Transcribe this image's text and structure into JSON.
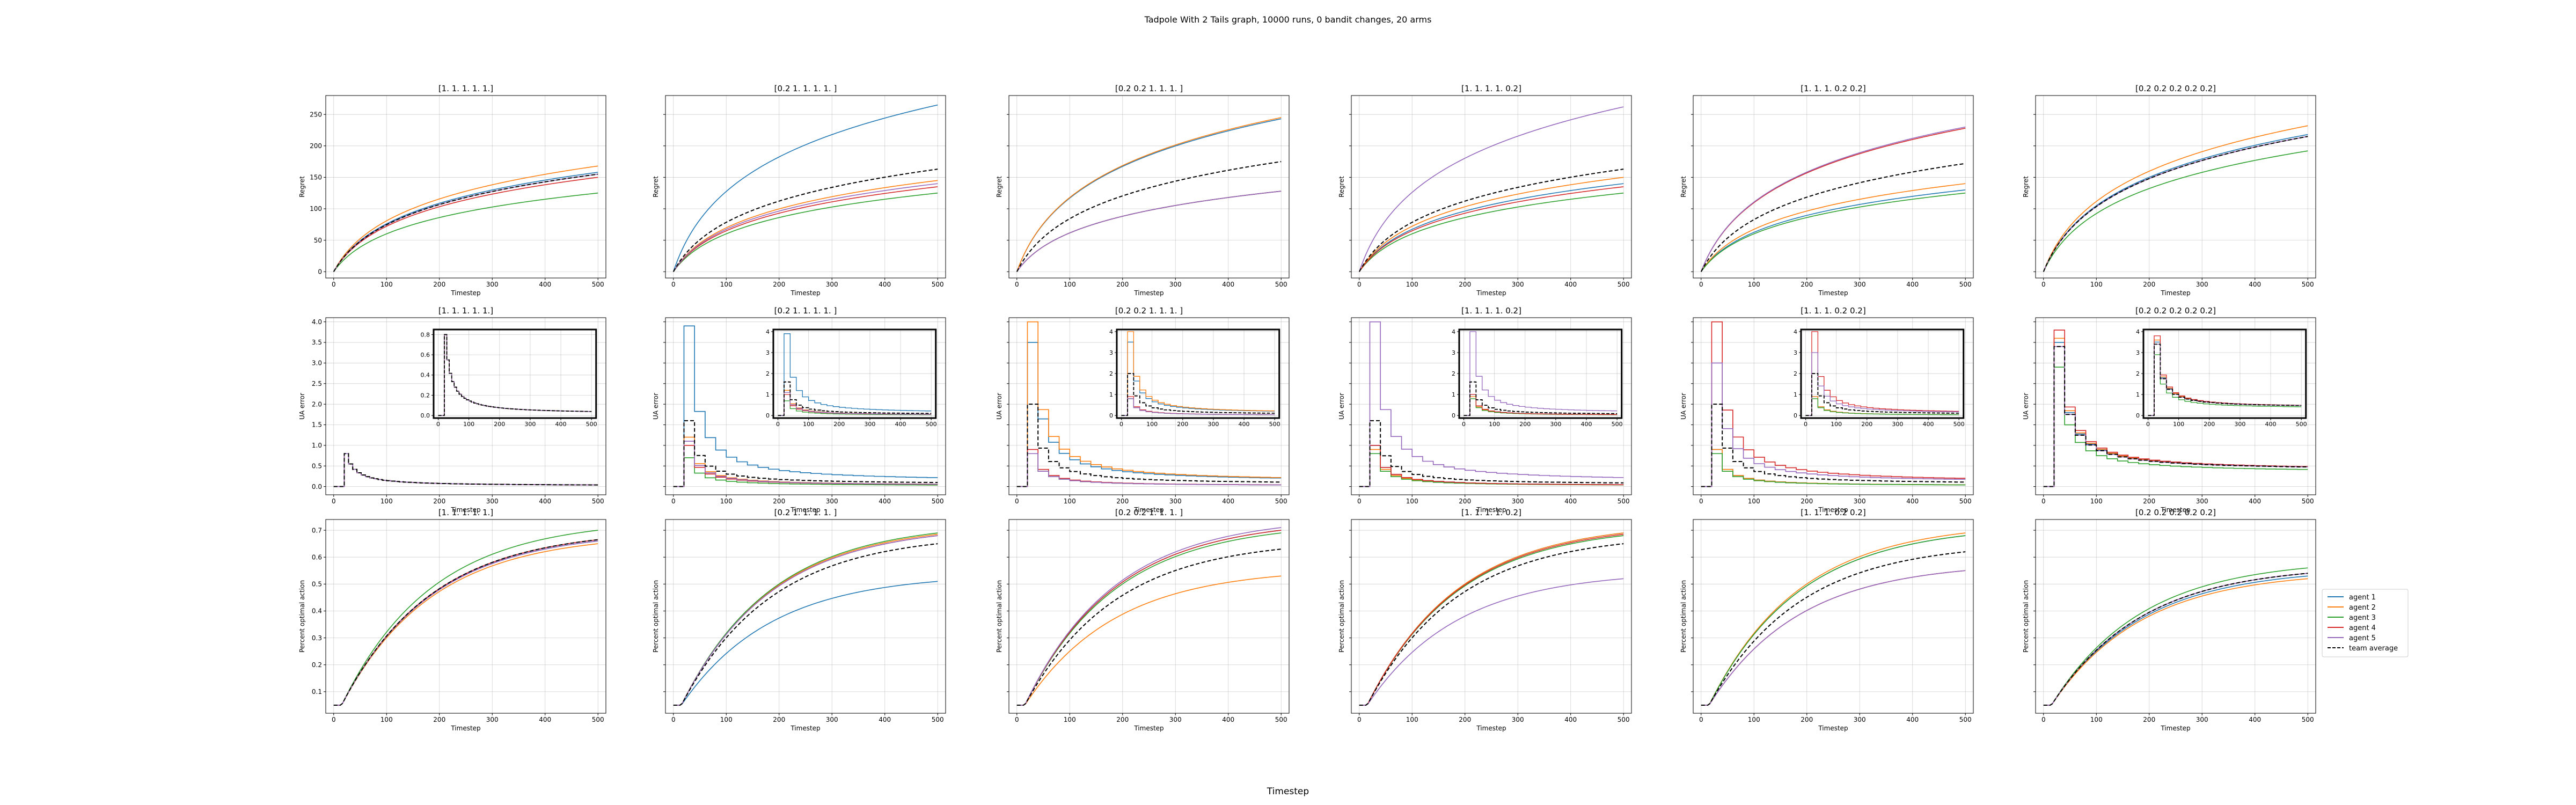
{
  "figure": {
    "suptitle": "Tadpole With 2 Tails graph, 10000 runs, 0 bandit changes, 20 arms",
    "supxlabel": "Timestep"
  },
  "legend": {
    "placement": "right of bottom-right subplot",
    "entries": [
      {
        "label": "agent 1",
        "color": "#1f77b4",
        "dashed": false
      },
      {
        "label": "agent 2",
        "color": "#ff7f0e",
        "dashed": false
      },
      {
        "label": "agent 3",
        "color": "#2ca02c",
        "dashed": false
      },
      {
        "label": "agent 4",
        "color": "#d62728",
        "dashed": false
      },
      {
        "label": "agent 5",
        "color": "#9467bd",
        "dashed": false
      },
      {
        "label": "team average",
        "color": "#000000",
        "dashed": true
      }
    ]
  },
  "chart_data": {
    "type": "line",
    "grid": true,
    "x_range": [
      0,
      500
    ],
    "series_names": [
      "agent 1",
      "agent 2",
      "agent 3",
      "agent 4",
      "agent 5",
      "team average"
    ],
    "column_titles": [
      "[1. 1. 1. 1. 1.]",
      "[0.2 1.  1.  1.  1. ]",
      "[0.2 0.2 1.  1.  1. ]",
      "[1.  1.  1.  1.  0.2]",
      "[1.  1.  1.  0.2 0.2]",
      "[0.2 0.2 0.2 0.2 0.2]"
    ],
    "rows": [
      {
        "ylabel": "Regret",
        "xlabel": "Timestep",
        "ylim": [
          -10,
          280
        ],
        "yticks": [
          0,
          50,
          100,
          150,
          200,
          250
        ],
        "xticks": [
          0,
          100,
          200,
          300,
          400,
          500
        ],
        "panels": [
          {
            "final": [
              158,
              168,
              125,
              150,
              155,
              155
            ]
          },
          {
            "final": [
              265,
              145,
              125,
              135,
              140,
              163
            ]
          },
          {
            "final": [
              243,
              245,
              128,
              128,
              128,
              175
            ]
          },
          {
            "final": [
              140,
              150,
              125,
              135,
              262,
              163
            ]
          },
          {
            "final": [
              130,
              140,
              125,
              228,
              230,
              172
            ]
          },
          {
            "final": [
              218,
              232,
              192,
              215,
              215,
              215
            ]
          }
        ]
      },
      {
        "ylabel": "UA error",
        "xlabel": "Timestep",
        "ylim": [
          -0.2,
          4.1
        ],
        "yticks": [
          0.0,
          0.5,
          1.0,
          1.5,
          2.0,
          2.5,
          3.0,
          3.5,
          4.0
        ],
        "xticks": [
          0,
          100,
          200,
          300,
          400,
          500
        ],
        "inset": {
          "yticks_small": [
            0.0,
            0.2,
            0.4,
            0.6,
            0.8
          ],
          "yticks_large": [
            0,
            1,
            2,
            3,
            4
          ]
        },
        "panels": [
          {
            "peak": [
              0.8,
              0.8,
              0.8,
              0.8,
              0.8,
              0.8
            ],
            "tail": [
              0.02,
              0.02,
              0.02,
              0.02,
              0.02,
              0.02
            ]
          },
          {
            "peak": [
              3.9,
              1.2,
              0.7,
              1.0,
              1.1,
              1.6
            ],
            "tail": [
              0.12,
              0.03,
              0.02,
              0.03,
              0.03,
              0.06
            ]
          },
          {
            "peak": [
              3.5,
              4.0,
              0.8,
              0.9,
              0.8,
              2.0
            ],
            "tail": [
              0.12,
              0.12,
              0.02,
              0.02,
              0.02,
              0.06
            ]
          },
          {
            "peak": [
              1.0,
              0.9,
              0.8,
              1.0,
              4.0,
              1.6
            ],
            "tail": [
              0.02,
              0.02,
              0.02,
              0.02,
              0.12,
              0.05
            ]
          },
          {
            "peak": [
              0.9,
              0.9,
              0.8,
              4.0,
              3.0,
              2.0
            ],
            "tail": [
              0.02,
              0.02,
              0.02,
              0.1,
              0.1,
              0.06
            ]
          },
          {
            "peak": [
              3.5,
              3.6,
              2.9,
              3.8,
              3.4,
              3.4
            ],
            "tail": [
              0.4,
              0.4,
              0.35,
              0.4,
              0.4,
              0.4
            ]
          }
        ]
      },
      {
        "ylabel": "Percent optimal action",
        "xlabel": "Timestep",
        "ylim": [
          0.02,
          0.74
        ],
        "yticks": [
          0.1,
          0.2,
          0.3,
          0.4,
          0.5,
          0.6,
          0.7
        ],
        "xticks": [
          0,
          100,
          200,
          300,
          400,
          500
        ],
        "panels": [
          {
            "final": [
              0.66,
              0.65,
              0.7,
              0.665,
              0.66,
              0.665
            ]
          },
          {
            "final": [
              0.51,
              0.685,
              0.69,
              0.68,
              0.68,
              0.65
            ]
          },
          {
            "final": [
              0.7,
              0.53,
              0.69,
              0.7,
              0.71,
              0.63
            ]
          },
          {
            "final": [
              0.69,
              0.69,
              0.68,
              0.685,
              0.52,
              0.65
            ]
          },
          {
            "final": [
              0.68,
              0.69,
              0.68,
              0.55,
              0.55,
              0.62
            ]
          },
          {
            "final": [
              0.53,
              0.52,
              0.56,
              0.54,
              0.54,
              0.54
            ]
          }
        ]
      }
    ]
  }
}
